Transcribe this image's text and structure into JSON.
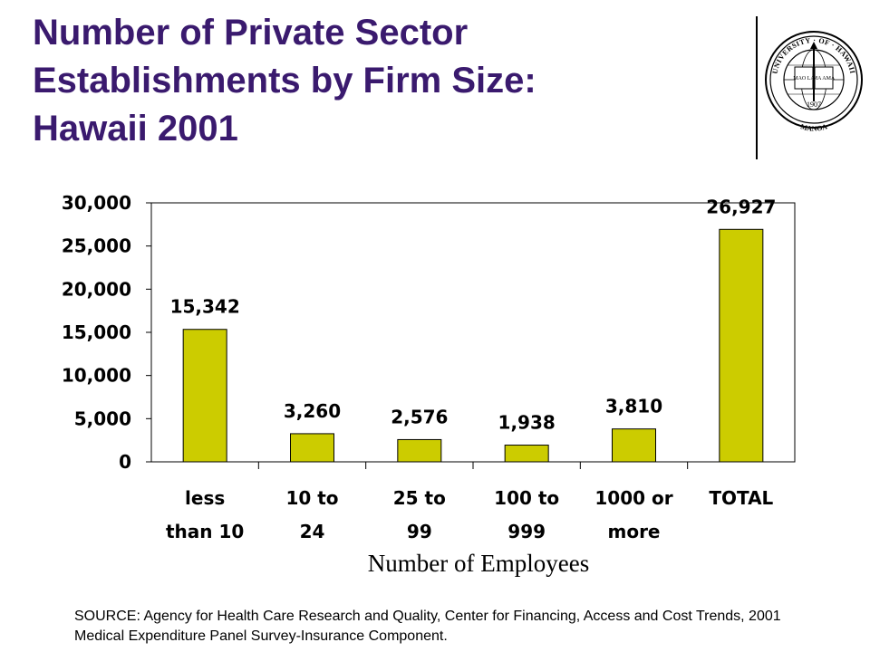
{
  "slide": {
    "title_lines": [
      "Number of Private Sector",
      "Establishments by Firm Size:",
      "Hawaii 2001"
    ],
    "source": "SOURCE: Agency for Health Care Research and Quality, Center for Financing, Access and Cost Trends, 2001 Medical Expenditure Panel Survey-Insurance Component."
  },
  "seal": {
    "text_top": "UNIVERSITY · OF · HAWAII",
    "text_year": "1907",
    "text_bottom": "MANOA",
    "book_left": "MAO LA",
    "book_right": "MA AMA"
  },
  "colors": {
    "title": "#3a1a6e",
    "bar": "#cccc00",
    "bar_outline": "#000000"
  },
  "chart_data": {
    "type": "bar",
    "categories": [
      [
        "less",
        "than 10"
      ],
      [
        "10 to",
        "24"
      ],
      [
        "25 to",
        "99"
      ],
      [
        "100 to",
        "999"
      ],
      [
        "1000 or",
        "more"
      ],
      [
        "TOTAL"
      ]
    ],
    "values": [
      15342,
      3260,
      2576,
      1938,
      3810,
      26927
    ],
    "data_labels": [
      "15,342",
      "3,260",
      "2,576",
      "1,938",
      "3,810",
      "26,927"
    ],
    "xlabel": "Number of Employees",
    "ylabel": "",
    "ylim": [
      0,
      30000
    ],
    "yticks": [
      0,
      5000,
      10000,
      15000,
      20000,
      25000,
      30000
    ],
    "ytick_labels": [
      "0",
      "5,000",
      "10,000",
      "15,000",
      "20,000",
      "25,000",
      "30,000"
    ],
    "grid": false,
    "legend": "none"
  }
}
